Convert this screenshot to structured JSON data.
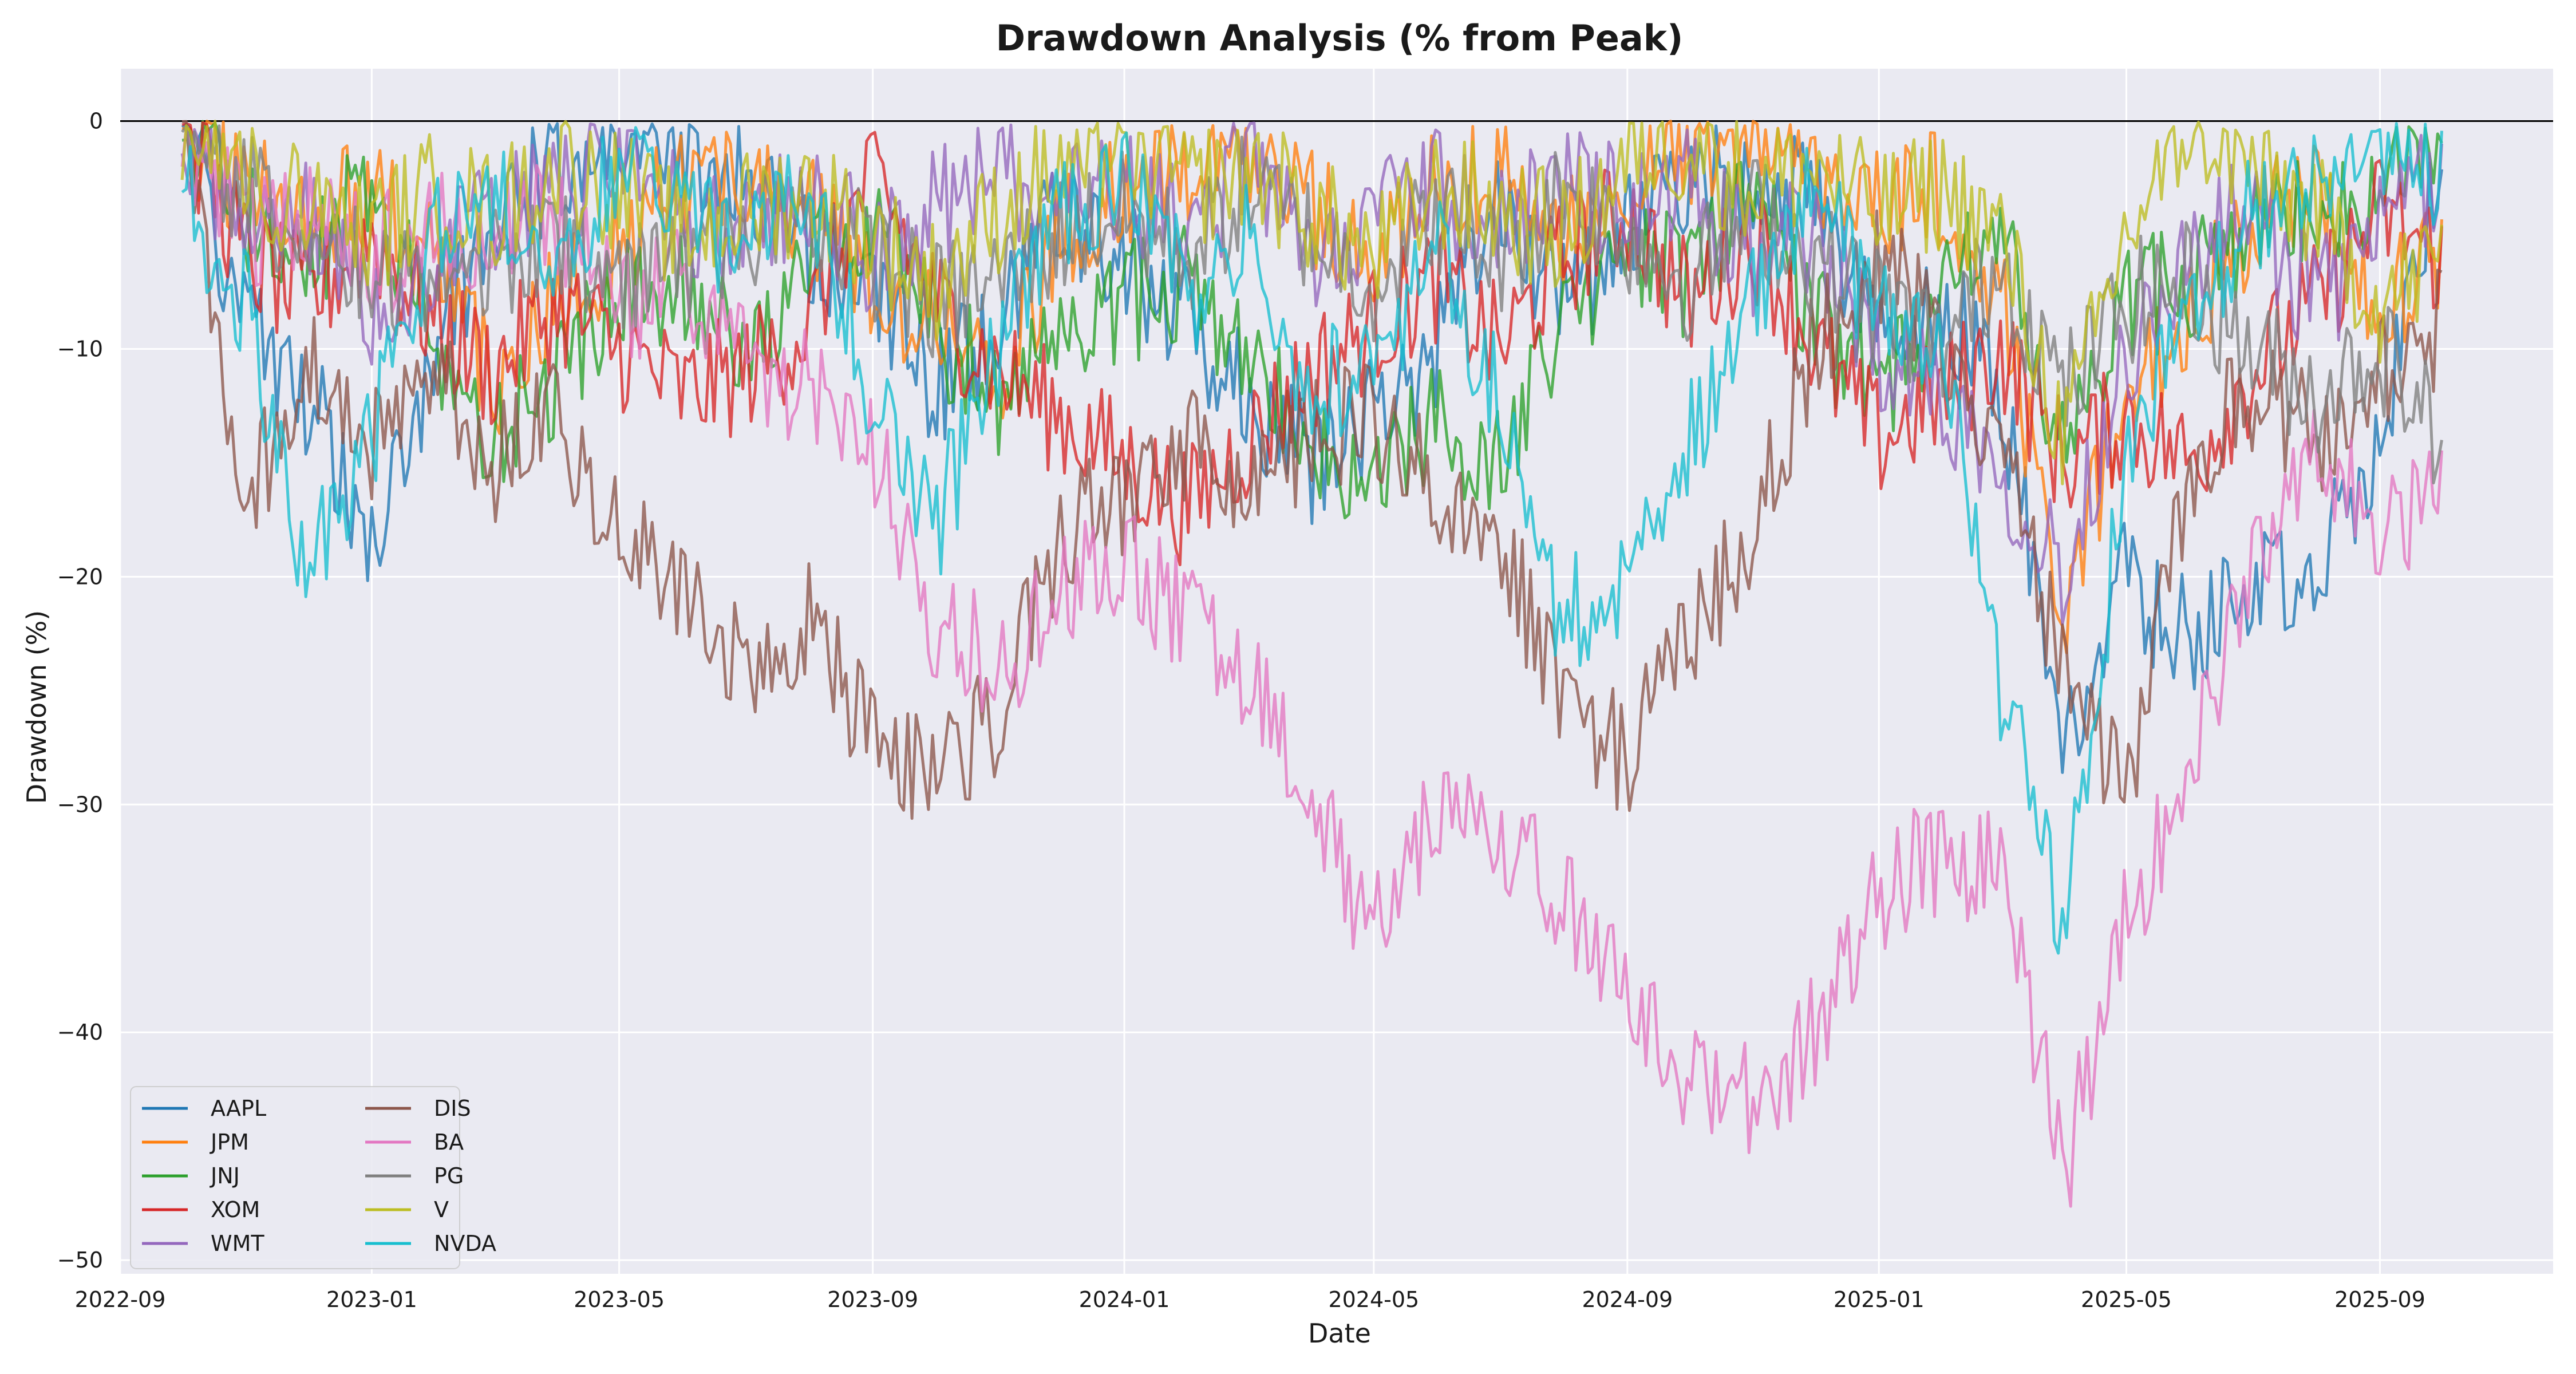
{
  "chart_data": {
    "type": "line",
    "title": "Drawdown Analysis (% from Peak)",
    "xlabel": "Date",
    "ylabel": "Drawdown (%)",
    "x_ticks": [
      "2022-09",
      "2023-01",
      "2023-05",
      "2023-09",
      "2024-01",
      "2024-05",
      "2024-09",
      "2025-01",
      "2025-05",
      "2025-09"
    ],
    "y_ticks": [
      0,
      -10,
      -20,
      -30,
      -40,
      -50
    ],
    "xlim": [
      "2022-09-01",
      "2025-11-24"
    ],
    "ylim": [
      -50.6,
      2.3
    ],
    "grid": true,
    "zero_line": true,
    "legend_position": "lower-left",
    "legend_columns": 2,
    "x": [
      "2022-10-01",
      "2022-11-01",
      "2022-12-01",
      "2023-01-01",
      "2023-02-01",
      "2023-03-01",
      "2023-04-01",
      "2023-05-01",
      "2023-06-01",
      "2023-07-01",
      "2023-08-01",
      "2023-09-01",
      "2023-10-01",
      "2023-11-01",
      "2023-12-01",
      "2024-01-01",
      "2024-02-01",
      "2024-03-01",
      "2024-04-01",
      "2024-05-01",
      "2024-06-01",
      "2024-07-01",
      "2024-08-01",
      "2024-09-01",
      "2024-10-01",
      "2024-11-01",
      "2024-12-01",
      "2025-01-01",
      "2025-02-01",
      "2025-03-01",
      "2025-04-01",
      "2025-05-01",
      "2025-06-01",
      "2025-07-01",
      "2025-08-01",
      "2025-09-01",
      "2025-10-01"
    ],
    "series": [
      {
        "name": "AAPL",
        "color": "#1f77b4",
        "values": [
          0,
          -9,
          -12,
          -18,
          -10,
          -4,
          -2,
          0,
          -1,
          -3,
          -6,
          -8,
          -12,
          -9,
          -4,
          -6,
          -9,
          -12,
          -15,
          -13,
          -10,
          -4,
          -8,
          -5,
          -3,
          -2,
          -4,
          -10,
          -8,
          -12,
          -27,
          -20,
          -23,
          -21,
          -19,
          -14,
          -2
        ]
      },
      {
        "name": "JPM",
        "color": "#ff7f0e",
        "values": [
          0,
          -3,
          -5,
          -3,
          -6,
          -12,
          -8,
          -5,
          -3,
          -2,
          -4,
          -7,
          -9,
          -12,
          -5,
          -3,
          -2,
          -1,
          -4,
          -6,
          -3,
          -2,
          -5,
          -3,
          -1,
          0,
          -2,
          -4,
          -3,
          -8,
          -21,
          -12,
          -8,
          -5,
          -3,
          -8,
          -6
        ]
      },
      {
        "name": "JNJ",
        "color": "#2ca02c",
        "values": [
          0,
          -4,
          -6,
          -3,
          -10,
          -14,
          -11,
          -8,
          -7,
          -10,
          -6,
          -5,
          -9,
          -12,
          -10,
          -8,
          -7,
          -11,
          -14,
          -16,
          -13,
          -15,
          -9,
          -5,
          -7,
          -3,
          -9,
          -12,
          -8,
          -5,
          -15,
          -8,
          -7,
          -5,
          -4,
          -3,
          0
        ]
      },
      {
        "name": "XOM",
        "color": "#d62728",
        "values": [
          0,
          -6,
          -8,
          -5,
          -9,
          -11,
          -8,
          -10,
          -12,
          -11,
          -9,
          -2,
          -8,
          -11,
          -13,
          -15,
          -17,
          -14,
          -11,
          -9,
          -7,
          -10,
          -6,
          -4,
          -8,
          -5,
          -10,
          -14,
          -12,
          -10,
          -15,
          -13,
          -15,
          -11,
          -8,
          -4,
          -6
        ]
      },
      {
        "name": "WMT",
        "color": "#9467bd",
        "values": [
          0,
          -6,
          -4,
          -8,
          -6,
          -4,
          -3,
          -2,
          -4,
          -5,
          -3,
          -6,
          -4,
          -2,
          -4,
          -3,
          -5,
          -2,
          -6,
          -4,
          -3,
          -5,
          -2,
          -4,
          -3,
          -6,
          -5,
          -10,
          -12,
          -15,
          -20,
          -10,
          -6,
          -4,
          -8,
          -5,
          -2
        ]
      },
      {
        "name": "DIS",
        "color": "#8c564b",
        "values": [
          0,
          -17,
          -10,
          -14,
          -11,
          -15,
          -13,
          -18,
          -20,
          -24,
          -22,
          -27,
          -29,
          -26,
          -18,
          -17,
          -14,
          -17,
          -14,
          -13,
          -16,
          -18,
          -26,
          -28,
          -23,
          -18,
          -10,
          -6,
          -10,
          -14,
          -25,
          -30,
          -15,
          -12,
          -14,
          -11,
          -9
        ]
      },
      {
        "name": "BA",
        "color": "#e377c2",
        "values": [
          0,
          -5,
          -4,
          -6,
          -5,
          -5,
          -4,
          -8,
          -7,
          -10,
          -12,
          -14,
          -22,
          -24,
          -21,
          -19,
          -22,
          -24,
          -30,
          -36,
          -30,
          -32,
          -34,
          -38,
          -42,
          -43,
          -40,
          -34,
          -32,
          -33,
          -46,
          -35,
          -28,
          -20,
          -15,
          -18,
          -17
        ]
      },
      {
        "name": "PG",
        "color": "#7f7f7f",
        "values": [
          0,
          -3,
          -5,
          -7,
          -8,
          -6,
          -5,
          -7,
          -6,
          -5,
          -4,
          -6,
          -8,
          -7,
          -5,
          -4,
          -6,
          -3,
          -5,
          -7,
          -4,
          -6,
          -3,
          -5,
          -7,
          -4,
          -6,
          -8,
          -10,
          -6,
          -12,
          -8,
          -7,
          -10,
          -12,
          -10,
          -14
        ]
      },
      {
        "name": "V",
        "color": "#bcbd22",
        "values": [
          0,
          -2,
          -4,
          -5,
          -3,
          -4,
          -2,
          -3,
          -5,
          -4,
          -3,
          -5,
          -7,
          -4,
          -2,
          -1,
          -3,
          -2,
          -4,
          -6,
          -3,
          -4,
          -5,
          -2,
          -1,
          -3,
          -2,
          -4,
          -3,
          -5,
          -14,
          -5,
          0,
          -2,
          -4,
          -8,
          -6
        ]
      },
      {
        "name": "NVDA",
        "color": "#17becf",
        "values": [
          -3,
          -8,
          -20,
          -14,
          -5,
          -3,
          -6,
          -2,
          -4,
          -6,
          -3,
          -12,
          -18,
          -10,
          -4,
          -2,
          -8,
          -4,
          -12,
          -10,
          -6,
          -12,
          -22,
          -20,
          -14,
          -8,
          -3,
          -9,
          -10,
          -25,
          -35,
          -15,
          -8,
          -4,
          -2,
          -1,
          -2
        ]
      }
    ]
  }
}
